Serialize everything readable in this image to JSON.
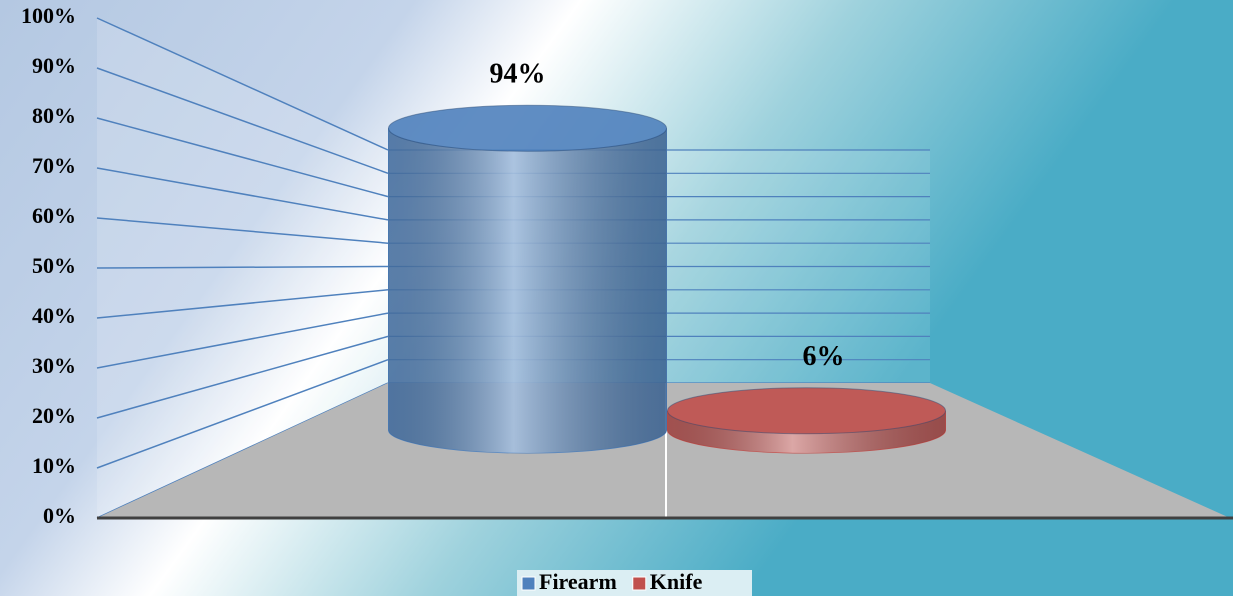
{
  "chart_data": {
    "type": "cylinder-bar",
    "categories": [
      null
    ],
    "series": [
      {
        "name": "Firearm",
        "color": "#4f81bd",
        "values": [
          94
        ],
        "value_labels": [
          "94%"
        ]
      },
      {
        "name": "Knife",
        "color": "#c0504d",
        "values": [
          6
        ],
        "value_labels": [
          "6%"
        ]
      }
    ],
    "ylim": [
      0,
      100
    ],
    "yticks": [
      {
        "value": 0,
        "label": "0%"
      },
      {
        "value": 10,
        "label": "10%"
      },
      {
        "value": 20,
        "label": "20%"
      },
      {
        "value": 30,
        "label": "30%"
      },
      {
        "value": 40,
        "label": "40%"
      },
      {
        "value": 50,
        "label": "50%"
      },
      {
        "value": 60,
        "label": "60%"
      },
      {
        "value": 70,
        "label": "70%"
      },
      {
        "value": 80,
        "label": "80%"
      },
      {
        "value": 90,
        "label": "90%"
      },
      {
        "value": 100,
        "label": "100%"
      }
    ],
    "grid": true,
    "legend": "bottom"
  }
}
